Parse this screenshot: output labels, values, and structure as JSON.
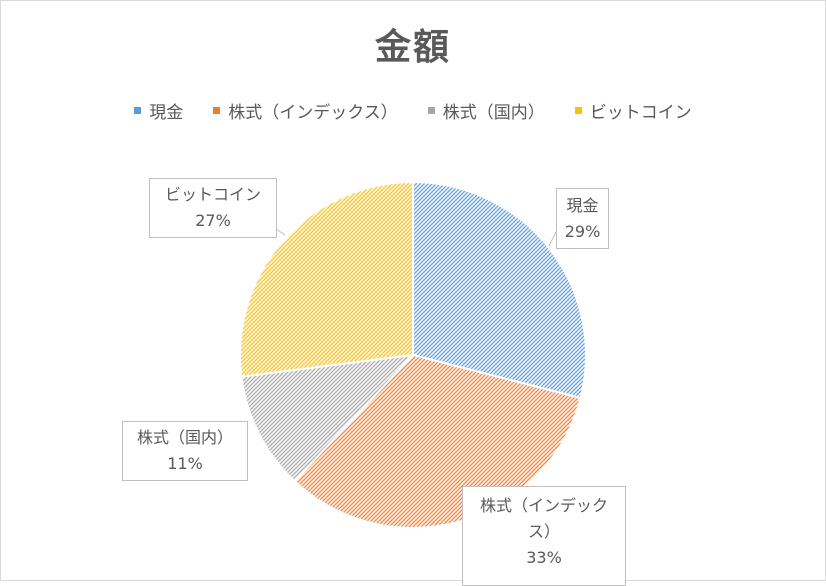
{
  "chart_data": {
    "type": "pie",
    "title": "金額",
    "legend_position": "top",
    "categories": [
      "現金",
      "株式（インデックス）",
      "株式（国内）",
      "ビットコイン"
    ],
    "values": [
      29,
      33,
      11,
      27
    ],
    "labels": [
      "29%",
      "33%",
      "11%",
      "27%"
    ],
    "colors": [
      "#5b9bd5",
      "#ed7d31",
      "#a5a5a5",
      "#ffc000"
    ],
    "fill_pattern": "hatched"
  },
  "callouts": {
    "cash": {
      "name": "現金",
      "pct": "29%"
    },
    "index_line1": "株式（インデック",
    "index_line2": "ス）",
    "index_pct": "33%",
    "domestic": {
      "name": "株式（国内）",
      "pct": "11%"
    },
    "bitcoin": {
      "name": "ビットコイン",
      "pct": "27%"
    }
  }
}
